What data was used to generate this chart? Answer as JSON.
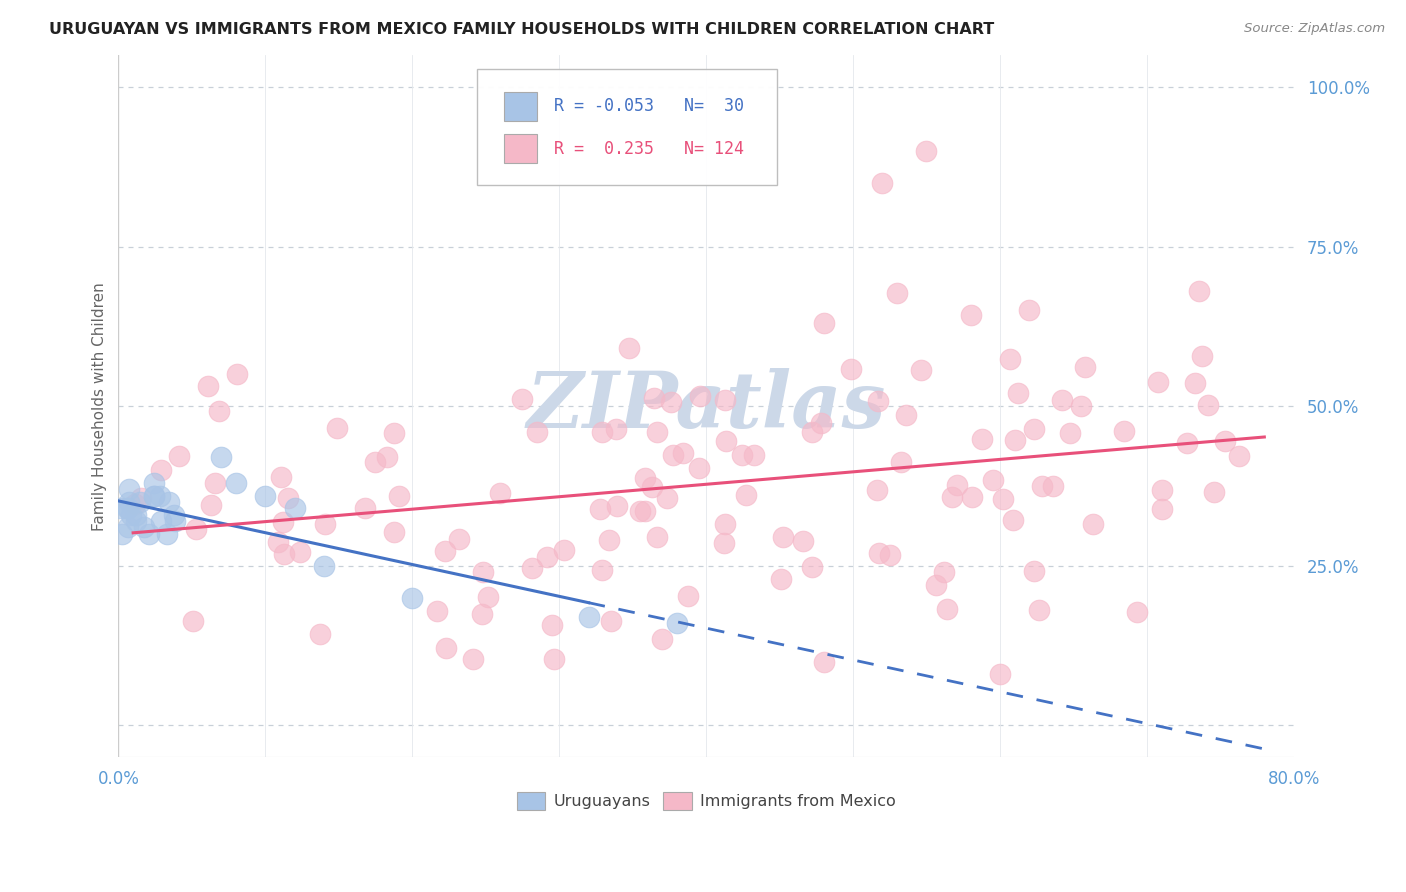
{
  "title": "URUGUAYAN VS IMMIGRANTS FROM MEXICO FAMILY HOUSEHOLDS WITH CHILDREN CORRELATION CHART",
  "source_text": "Source: ZipAtlas.com",
  "ylabel": "Family Households with Children",
  "xlim": [
    0.0,
    0.8
  ],
  "ylim": [
    -0.05,
    1.05
  ],
  "r_uruguayan": -0.053,
  "n_uruguayan": 30,
  "r_mexico": 0.235,
  "n_mexico": 124,
  "uruguayan_color": "#a8c4e6",
  "mexico_color": "#f5b8c8",
  "uruguayan_line_color": "#4472c4",
  "mexico_line_color": "#e8507a",
  "background_color": "#ffffff",
  "grid_color": "#c8d0d8",
  "watermark_color": "#ccd8e8",
  "title_color": "#222222",
  "source_color": "#888888",
  "tick_color": "#5b9bd5",
  "ylabel_color": "#666666"
}
